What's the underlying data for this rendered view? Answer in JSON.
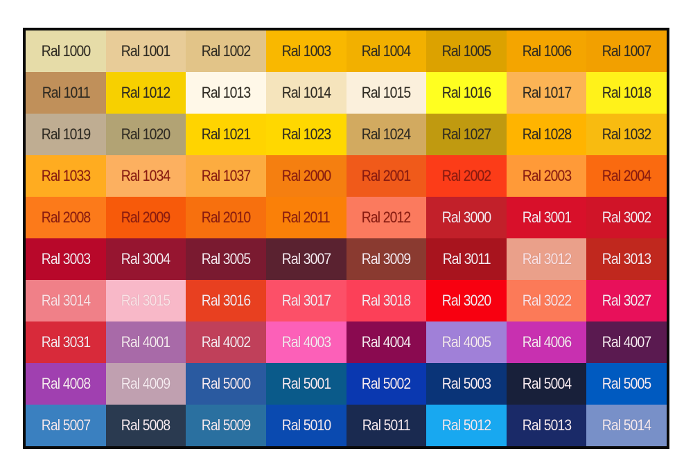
{
  "swatches": [
    {
      "label": "Ral 1000",
      "color": "#e6dca8"
    },
    {
      "label": "Ral 1001",
      "color": "#e8cc98"
    },
    {
      "label": "Ral 1002",
      "color": "#e2c488"
    },
    {
      "label": "Ral 1003",
      "color": "#f9b800"
    },
    {
      "label": "Ral 1004",
      "color": "#f2b000"
    },
    {
      "label": "Ral 1005",
      "color": "#dca200"
    },
    {
      "label": "Ral 1006",
      "color": "#f4a500"
    },
    {
      "label": "Ral 1007",
      "color": "#f2a000"
    },
    {
      "label": "Ral 1011",
      "color": "#c0905a"
    },
    {
      "label": "Ral 1012",
      "color": "#f7d000"
    },
    {
      "label": "Ral 1013",
      "color": "#fff8e8"
    },
    {
      "label": "Ral 1014",
      "color": "#f5e4bc"
    },
    {
      "label": "Ral 1015",
      "color": "#fbf0dc"
    },
    {
      "label": "Ral 1016",
      "color": "#ffff20"
    },
    {
      "label": "Ral 1017",
      "color": "#fcb455"
    },
    {
      "label": "Ral 1018",
      "color": "#fff21a"
    },
    {
      "label": "Ral 1019",
      "color": "#bfad92"
    },
    {
      "label": "Ral 1020",
      "color": "#b2a374"
    },
    {
      "label": "Ral 1021",
      "color": "#ffd400"
    },
    {
      "label": "Ral 1023",
      "color": "#ffd800"
    },
    {
      "label": "Ral 1024",
      "color": "#d2aa60"
    },
    {
      "label": "Ral 1027",
      "color": "#c09a10"
    },
    {
      "label": "Ral 1028",
      "color": "#ffb400"
    },
    {
      "label": "Ral 1032",
      "color": "#f8bb10"
    },
    {
      "label": "Ral 1033",
      "color": "#ffac20"
    },
    {
      "label": "Ral 1034",
      "color": "#fcb060"
    },
    {
      "label": "Ral 1037",
      "color": "#fcac40"
    },
    {
      "label": "Ral 2000",
      "color": "#f57f10"
    },
    {
      "label": "Ral 2001",
      "color": "#f05a1a"
    },
    {
      "label": "Ral 2002",
      "color": "#fc3c18"
    },
    {
      "label": "Ral 2003",
      "color": "#ff9a38"
    },
    {
      "label": "Ral 2004",
      "color": "#fa6a10"
    },
    {
      "label": "Ral 2008",
      "color": "#fc7a1a"
    },
    {
      "label": "Ral 2009",
      "color": "#f75a0a"
    },
    {
      "label": "Ral 2010",
      "color": "#f7700e"
    },
    {
      "label": "Ral 2011",
      "color": "#fa8008"
    },
    {
      "label": "Ral 2012",
      "color": "#fb7a5e"
    },
    {
      "label": "Ral 3000",
      "color": "#c2202a"
    },
    {
      "label": "Ral 3001",
      "color": "#d8102a"
    },
    {
      "label": "Ral 3002",
      "color": "#d01428"
    },
    {
      "label": "Ral 3003",
      "color": "#b8082a"
    },
    {
      "label": "Ral 3004",
      "color": "#961530"
    },
    {
      "label": "Ral 3005",
      "color": "#7a1a30"
    },
    {
      "label": "Ral 3007",
      "color": "#5a2230"
    },
    {
      "label": "Ral 3009",
      "color": "#8a3a30"
    },
    {
      "label": "Ral 3011",
      "color": "#a8141e"
    },
    {
      "label": "Ral 3012",
      "color": "#eaa08a"
    },
    {
      "label": "Ral 3013",
      "color": "#c0281e"
    },
    {
      "label": "Ral 3014",
      "color": "#f08088"
    },
    {
      "label": "Ral 3015",
      "color": "#f8b8c8"
    },
    {
      "label": "Ral 3016",
      "color": "#e84020"
    },
    {
      "label": "Ral 3017",
      "color": "#fc5068"
    },
    {
      "label": "Ral 3018",
      "color": "#fc4058"
    },
    {
      "label": "Ral 3020",
      "color": "#f80010"
    },
    {
      "label": "Ral 3022",
      "color": "#fc7a58"
    },
    {
      "label": "Ral 3027",
      "color": "#e8105a"
    },
    {
      "label": "Ral 3031",
      "color": "#d82a3a"
    },
    {
      "label": "Ral 4001",
      "color": "#a86aa8"
    },
    {
      "label": "Ral 4002",
      "color": "#c0405a"
    },
    {
      "label": "Ral 4003",
      "color": "#fc60b8"
    },
    {
      "label": "Ral 4004",
      "color": "#8a0a50"
    },
    {
      "label": "Ral 4005",
      "color": "#a080d8"
    },
    {
      "label": "Ral 4006",
      "color": "#c830b0"
    },
    {
      "label": "Ral 4007",
      "color": "#5a1a50"
    },
    {
      "label": "Ral 4008",
      "color": "#a040b0"
    },
    {
      "label": "Ral 4009",
      "color": "#c0a0b0"
    },
    {
      "label": "Ral 5000",
      "color": "#2a5aa0"
    },
    {
      "label": "Ral 5001",
      "color": "#0a5a8a"
    },
    {
      "label": "Ral 5002",
      "color": "#0a38b0"
    },
    {
      "label": "Ral 5003",
      "color": "#0a3478"
    },
    {
      "label": "Ral 5004",
      "color": "#18203a"
    },
    {
      "label": "Ral 5005",
      "color": "#005ac0"
    },
    {
      "label": "Ral 5007",
      "color": "#3a80c0"
    },
    {
      "label": "Ral 5008",
      "color": "#2a3a50"
    },
    {
      "label": "Ral 5009",
      "color": "#2a70a0"
    },
    {
      "label": "Ral 5010",
      "color": "#0a4ab0"
    },
    {
      "label": "Ral 5011",
      "color": "#1a2a50"
    },
    {
      "label": "Ral 5012",
      "color": "#18a8f0"
    },
    {
      "label": "Ral 5013",
      "color": "#1a2a68"
    },
    {
      "label": "Ral 5014",
      "color": "#7890c8"
    }
  ]
}
